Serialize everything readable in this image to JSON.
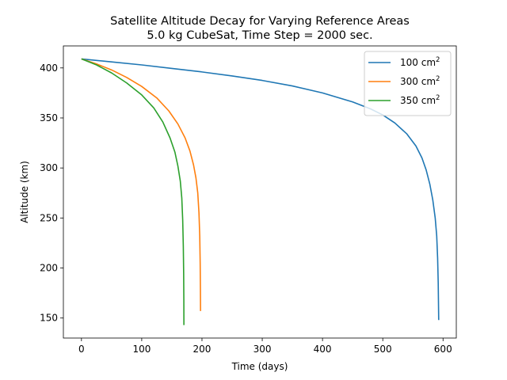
{
  "chart_data": {
    "type": "line",
    "title": "Satellite Altitude Decay for Varying Reference Areas",
    "subtitle": "5.0 kg CubeSat, Time Step = 2000 sec.",
    "xlabel": "Time (days)",
    "ylabel": "Altitude (km)",
    "xlim": [
      -30,
      622
    ],
    "ylim": [
      130,
      422
    ],
    "xticks": [
      0,
      100,
      200,
      300,
      400,
      500,
      600
    ],
    "yticks": [
      150,
      200,
      250,
      300,
      350,
      400
    ],
    "grid": false,
    "legend_position": "upper-right",
    "series": [
      {
        "name": "100 cm",
        "name_superscript": "2",
        "color": "#1f77b4",
        "points": [
          [
            0,
            409
          ],
          [
            50,
            406
          ],
          [
            100,
            403
          ],
          [
            150,
            399.5
          ],
          [
            200,
            396
          ],
          [
            250,
            392
          ],
          [
            300,
            387.5
          ],
          [
            350,
            382
          ],
          [
            400,
            375
          ],
          [
            450,
            366
          ],
          [
            480,
            359
          ],
          [
            500,
            353
          ],
          [
            520,
            345
          ],
          [
            540,
            334
          ],
          [
            555,
            322
          ],
          [
            565,
            310
          ],
          [
            572,
            298
          ],
          [
            578,
            284
          ],
          [
            583,
            268
          ],
          [
            587,
            250
          ],
          [
            589.5,
            232
          ],
          [
            591,
            210
          ],
          [
            592,
            185
          ],
          [
            592.5,
            162
          ],
          [
            592.8,
            148
          ]
        ]
      },
      {
        "name": "300 cm",
        "name_superscript": "2",
        "color": "#ff7f0e",
        "points": [
          [
            0,
            409
          ],
          [
            25,
            404
          ],
          [
            50,
            398
          ],
          [
            75,
            390.5
          ],
          [
            100,
            381.5
          ],
          [
            125,
            370
          ],
          [
            145,
            357
          ],
          [
            160,
            344
          ],
          [
            172,
            330
          ],
          [
            180,
            317
          ],
          [
            186,
            303
          ],
          [
            190,
            290
          ],
          [
            193,
            275
          ],
          [
            195,
            255
          ],
          [
            196.3,
            232
          ],
          [
            197,
            205
          ],
          [
            197.4,
            178
          ],
          [
            197.6,
            157
          ]
        ]
      },
      {
        "name": "350 cm",
        "name_superscript": "2",
        "color": "#2ca02c",
        "points": [
          [
            0,
            409
          ],
          [
            25,
            403
          ],
          [
            50,
            395
          ],
          [
            75,
            385
          ],
          [
            100,
            373
          ],
          [
            120,
            360
          ],
          [
            135,
            346
          ],
          [
            147,
            330
          ],
          [
            155,
            316
          ],
          [
            160,
            302
          ],
          [
            164,
            287
          ],
          [
            166.5,
            270
          ],
          [
            168,
            248
          ],
          [
            169,
            222
          ],
          [
            169.6,
            195
          ],
          [
            169.9,
            168
          ],
          [
            170,
            143
          ]
        ]
      }
    ]
  }
}
